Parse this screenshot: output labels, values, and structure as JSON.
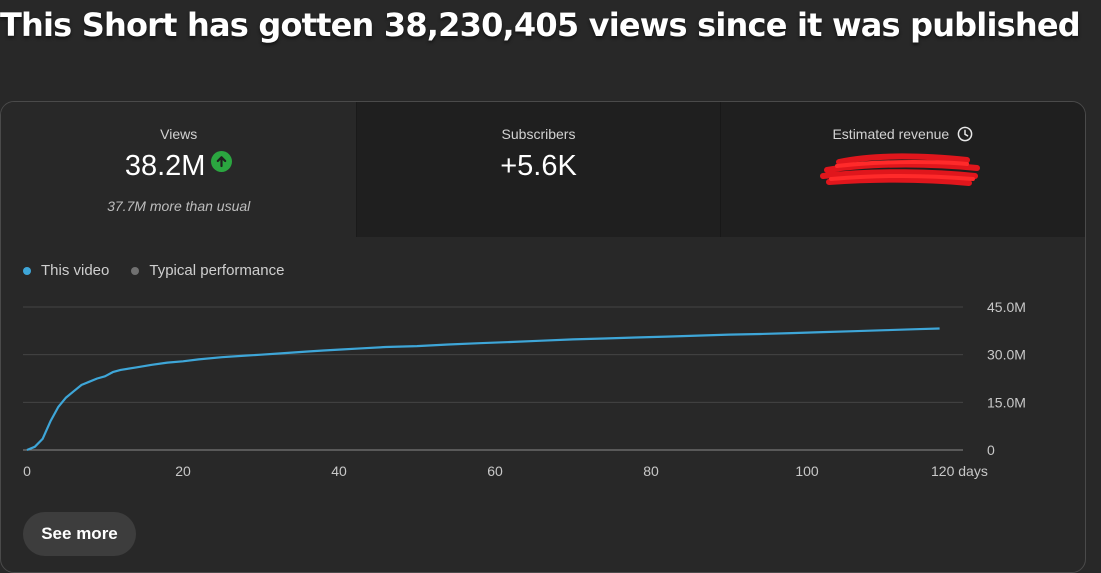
{
  "headline": "This Short has gotten 38,230,405 views since it was published",
  "stats": {
    "views": {
      "label": "Views",
      "value": "38.2M",
      "trend_icon": "arrow-up-circle-icon",
      "trend_color": "#2ba640",
      "note": "37.7M more than usual"
    },
    "subscribers": {
      "label": "Subscribers",
      "value": "+5.6K"
    },
    "revenue": {
      "label": "Estimated revenue",
      "info_icon": "clock-icon",
      "value_redacted": true,
      "redaction_color": "#e0161c"
    }
  },
  "legend": [
    {
      "label": "This video",
      "color": "#3ea6d8"
    },
    {
      "label": "Typical performance",
      "color": "#717171"
    }
  ],
  "chart_data": {
    "type": "line",
    "xlabel": "",
    "ylabel": "",
    "xlim": [
      0,
      120
    ],
    "ylim": [
      0,
      45000000
    ],
    "x_ticks": [
      "0",
      "20",
      "40",
      "60",
      "80",
      "100",
      "120 days"
    ],
    "y_ticks": [
      "45.0M",
      "30.0M",
      "15.0M",
      "0"
    ],
    "grid": true,
    "series": [
      {
        "name": "This video",
        "color": "#3ea6d8",
        "x": [
          0,
          1,
          2,
          3,
          4,
          5,
          6,
          7,
          8,
          9,
          10,
          11,
          12,
          14,
          16,
          18,
          20,
          22,
          25,
          28,
          30,
          33,
          36,
          38,
          40,
          43,
          46,
          50,
          54,
          58,
          62,
          66,
          70,
          74,
          78,
          82,
          86,
          90,
          94,
          98,
          102,
          106,
          110,
          114,
          117
        ],
        "y": [
          0,
          1000000,
          3500000,
          9000000,
          13500000,
          16500000,
          18500000,
          20500000,
          21500000,
          22500000,
          23200000,
          24500000,
          25200000,
          26000000,
          26800000,
          27500000,
          27900000,
          28500000,
          29200000,
          29700000,
          30000000,
          30500000,
          31000000,
          31300000,
          31600000,
          32000000,
          32400000,
          32700000,
          33200000,
          33600000,
          34000000,
          34400000,
          34800000,
          35100000,
          35400000,
          35700000,
          36000000,
          36300000,
          36500000,
          36800000,
          37100000,
          37400000,
          37700000,
          38000000,
          38230000
        ]
      }
    ]
  },
  "see_more_label": "See more"
}
